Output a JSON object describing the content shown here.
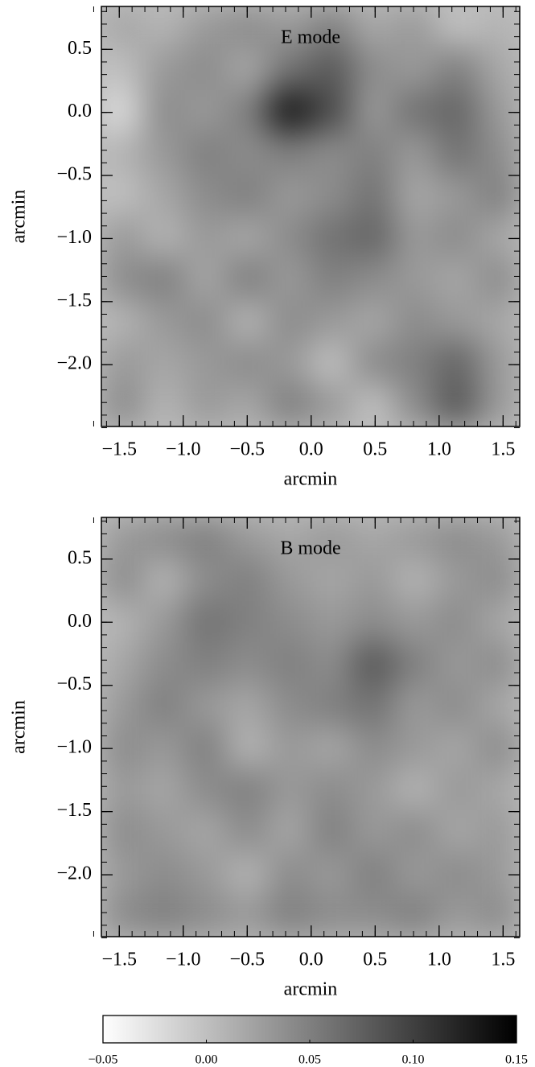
{
  "chart_data": [
    {
      "type": "heatmap",
      "title": "E mode",
      "xlabel": "arcmin",
      "ylabel": "arcmin",
      "xlim": [
        -1.64,
        1.63
      ],
      "ylim": [
        -2.49,
        0.84
      ],
      "xticks": [
        {
          "value": -1.5,
          "label": "−1.5"
        },
        {
          "value": -1.0,
          "label": "−1.0"
        },
        {
          "value": -0.5,
          "label": "−0.5"
        },
        {
          "value": 0,
          "label": "0.0"
        },
        0.5,
        {
          "value": 1.0,
          "label": "1.0"
        },
        1.5
      ],
      "yticks": [
        0.5,
        {
          "value": 0,
          "label": "0.0"
        },
        {
          "value": -0.5,
          "label": "−0.5"
        },
        {
          "value": -1.0,
          "label": "−1.0"
        },
        {
          "value": -1.5,
          "label": "−1.5"
        },
        {
          "value": -2.0,
          "label": "−2.0"
        }
      ],
      "colormap": "gray_r",
      "clim": [
        -0.05,
        0.15
      ],
      "z": [
        [
          0.02,
          0.01,
          0.03,
          0.04,
          0.03,
          0.05,
          0.02,
          0.03,
          0.0,
          0.01
        ],
        [
          0.0,
          0.03,
          0.04,
          0.02,
          0.06,
          0.08,
          0.04,
          0.03,
          0.05,
          0.02
        ],
        [
          -0.02,
          0.04,
          0.03,
          0.05,
          0.13,
          0.09,
          0.03,
          0.06,
          0.07,
          0.03
        ],
        [
          0.01,
          0.03,
          0.05,
          0.04,
          0.05,
          0.04,
          0.05,
          0.03,
          0.06,
          0.04
        ],
        [
          0.0,
          0.02,
          0.04,
          0.05,
          0.03,
          0.04,
          0.06,
          0.02,
          0.03,
          0.05
        ],
        [
          0.03,
          0.01,
          0.03,
          0.02,
          0.04,
          0.06,
          0.07,
          0.03,
          0.04,
          0.02
        ],
        [
          0.04,
          0.05,
          0.02,
          0.05,
          0.03,
          0.05,
          0.04,
          0.03,
          0.02,
          0.04
        ],
        [
          0.01,
          0.03,
          0.04,
          0.01,
          0.04,
          0.03,
          0.02,
          0.04,
          0.03,
          0.02
        ],
        [
          0.03,
          0.02,
          0.03,
          0.04,
          0.03,
          0.0,
          0.04,
          0.05,
          0.07,
          0.03
        ],
        [
          0.04,
          0.01,
          0.03,
          0.02,
          0.05,
          0.03,
          0.0,
          0.04,
          0.08,
          0.03
        ]
      ]
    },
    {
      "type": "heatmap",
      "title": "B mode",
      "xlabel": "arcmin",
      "ylabel": "arcmin",
      "xlim": [
        -1.64,
        1.63
      ],
      "ylim": [
        -2.49,
        0.83
      ],
      "xticks": [
        {
          "value": -1.5,
          "label": "−1.5"
        },
        {
          "value": -1.0,
          "label": "−1.0"
        },
        {
          "value": -0.5,
          "label": "−0.5"
        },
        {
          "value": 0,
          "label": "0.0"
        },
        0.5,
        {
          "value": 1.0,
          "label": "1.0"
        },
        1.5
      ],
      "yticks": [
        0.5,
        {
          "value": 0,
          "label": "0.0"
        },
        {
          "value": -0.5,
          "label": "−0.5"
        },
        {
          "value": -1.0,
          "label": "−1.0"
        },
        {
          "value": -1.5,
          "label": "−1.5"
        },
        {
          "value": -2.0,
          "label": "−2.0"
        }
      ],
      "colormap": "gray_r",
      "clim": [
        -0.05,
        0.15
      ],
      "z": [
        [
          0.03,
          0.04,
          0.05,
          0.03,
          0.02,
          0.03,
          0.02,
          0.03,
          0.04,
          0.03
        ],
        [
          0.04,
          0.01,
          0.04,
          0.05,
          0.03,
          0.02,
          0.03,
          0.01,
          0.03,
          0.04
        ],
        [
          0.01,
          0.03,
          0.06,
          0.05,
          0.04,
          0.03,
          0.04,
          0.03,
          0.04,
          0.02
        ],
        [
          0.02,
          0.04,
          0.05,
          0.04,
          0.05,
          0.04,
          0.08,
          0.05,
          0.03,
          0.04
        ],
        [
          0.03,
          0.05,
          0.03,
          0.02,
          0.04,
          0.05,
          0.06,
          0.03,
          0.04,
          0.02
        ],
        [
          0.04,
          0.03,
          0.05,
          0.01,
          0.03,
          0.02,
          0.04,
          0.03,
          0.02,
          0.04
        ],
        [
          0.03,
          0.02,
          0.04,
          0.05,
          0.03,
          0.04,
          0.03,
          0.01,
          0.03,
          0.02
        ],
        [
          0.04,
          0.03,
          0.02,
          0.04,
          0.02,
          0.05,
          0.03,
          0.04,
          0.02,
          0.03
        ],
        [
          0.03,
          0.04,
          0.03,
          0.01,
          0.04,
          0.03,
          0.05,
          0.03,
          0.04,
          0.03
        ],
        [
          0.04,
          0.05,
          0.04,
          0.03,
          0.05,
          0.04,
          0.04,
          0.05,
          0.03,
          0.04
        ]
      ]
    },
    {
      "type": "colorbar",
      "colormap": "gray_r",
      "clim": [
        -0.05,
        0.15
      ],
      "ticks": [
        {
          "value": -0.05,
          "label": "−0.05"
        },
        {
          "value": 0,
          "label": "0.00"
        },
        0.05,
        {
          "value": 0.1,
          "label": "0.10"
        },
        0.15
      ]
    }
  ]
}
